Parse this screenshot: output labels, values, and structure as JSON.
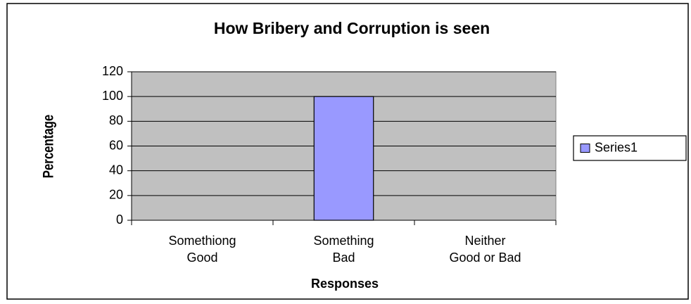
{
  "chart_data": {
    "type": "bar",
    "title": "How Bribery and Corruption is seen",
    "x_label": "Responses",
    "y_label": "Percentage",
    "categories": [
      "Somethiong\nGood",
      "Something\nBad",
      "Neither\nGood or Bad"
    ],
    "series": [
      {
        "name": "Series1",
        "color": "#9999ff",
        "values": [
          0,
          100,
          0
        ]
      }
    ],
    "ylim": [
      0,
      120
    ],
    "yticks": [
      0,
      20,
      40,
      60,
      80,
      100,
      120
    ],
    "grid": true,
    "legend": "right",
    "plot_background": "#c0c0c0"
  }
}
